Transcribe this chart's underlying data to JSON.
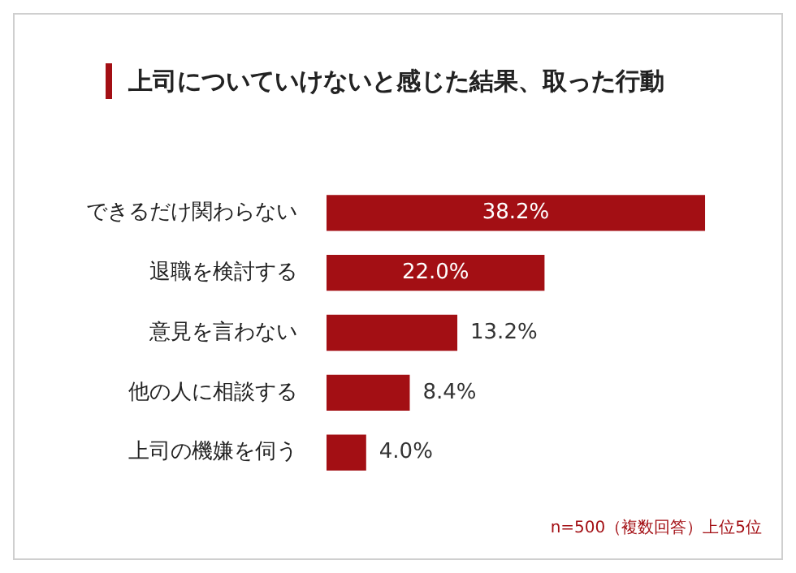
{
  "chart_data": {
    "type": "bar",
    "orientation": "horizontal",
    "title": "上司についていけないと感じた結果、取った行動",
    "categories": [
      "できるだけ関わらない",
      "退職を検討する",
      "意見を言わない",
      "他の人に相談する",
      "上司の機嫌を伺う"
    ],
    "values": [
      38.2,
      22.0,
      13.2,
      8.4,
      4.0
    ],
    "value_labels": [
      "38.2%",
      "22.0%",
      "13.2%",
      "8.4%",
      "4.0%"
    ],
    "color": "#a30f14",
    "grid": false,
    "legend": false,
    "annotations": [
      "n=500（複数回答）上位5位"
    ]
  }
}
